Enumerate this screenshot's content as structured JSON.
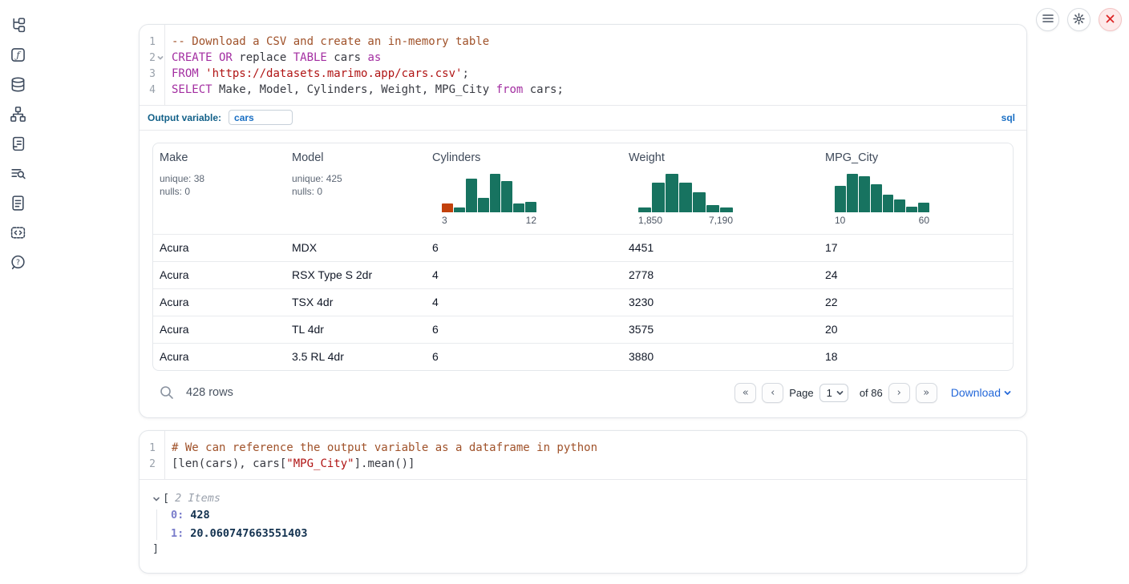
{
  "colors": {
    "hist_green": "#177360",
    "hist_accent": "#c2410c",
    "link_blue": "#2468d9",
    "badge_blue": "#1a6fc4",
    "label_teal": "#136189"
  },
  "sidebar": {
    "items": [
      "file-explorer",
      "helper-functions",
      "data-sources",
      "dependency-graph",
      "logs",
      "table-of-contents",
      "documentation",
      "snippets",
      "help"
    ]
  },
  "topbar": {
    "buttons": [
      "menu",
      "settings",
      "shutdown"
    ]
  },
  "sql_cell": {
    "language_badge": "sql",
    "output_variable": {
      "label": "Output variable:",
      "value": "cars"
    },
    "lines": [
      {
        "num": "1",
        "tokens": [
          {
            "type": "comment",
            "text": "-- Download a CSV and create an in-memory table"
          }
        ]
      },
      {
        "num": "2",
        "tokens": [
          {
            "type": "keyword",
            "text": "CREATE OR"
          },
          {
            "type": "plain",
            "text": " replace "
          },
          {
            "type": "keyword",
            "text": "TABLE"
          },
          {
            "type": "plain",
            "text": " cars "
          },
          {
            "type": "keyword",
            "text": "as"
          }
        ]
      },
      {
        "num": "3",
        "tokens": [
          {
            "type": "keyword",
            "text": "FROM"
          },
          {
            "type": "plain",
            "text": " "
          },
          {
            "type": "string",
            "text": "'https://datasets.marimo.app/cars.csv'"
          },
          {
            "type": "plain",
            "text": ";"
          }
        ]
      },
      {
        "num": "4",
        "tokens": [
          {
            "type": "keyword",
            "text": "SELECT"
          },
          {
            "type": "plain",
            "text": " Make, Model, Cylinders, Weight, MPG_City "
          },
          {
            "type": "keyword",
            "text": "from"
          },
          {
            "type": "plain",
            "text": " cars;"
          }
        ]
      }
    ]
  },
  "table": {
    "columns": [
      {
        "name": "Make",
        "unique": "unique: 38",
        "nulls": "nulls: 0"
      },
      {
        "name": "Model",
        "unique": "unique: 425",
        "nulls": "nulls: 0"
      },
      {
        "name": "Cylinders",
        "min": "3",
        "max": "12",
        "bars": [
          0.22,
          0.12,
          0.88,
          0.38,
          1,
          0.82,
          0.22,
          0.28
        ]
      },
      {
        "name": "Weight",
        "min": "1,850",
        "max": "7,190",
        "bars": [
          0.12,
          0.78,
          1,
          0.78,
          0.52,
          0.18,
          0.12
        ]
      },
      {
        "name": "MPG_City",
        "min": "10",
        "max": "60",
        "bars": [
          0.68,
          1,
          0.93,
          0.72,
          0.45,
          0.33,
          0.15,
          0.25
        ]
      }
    ],
    "rows": [
      [
        "Acura",
        "MDX",
        "6",
        "4451",
        "17"
      ],
      [
        "Acura",
        "RSX Type S 2dr",
        "4",
        "2778",
        "24"
      ],
      [
        "Acura",
        "TSX 4dr",
        "4",
        "3230",
        "22"
      ],
      [
        "Acura",
        "TL 4dr",
        "6",
        "3575",
        "20"
      ],
      [
        "Acura",
        "3.5 RL 4dr",
        "6",
        "3880",
        "18"
      ]
    ],
    "footer": {
      "row_count": "428 rows",
      "first_glyph": "«",
      "prev_glyph": "‹",
      "page_label": "Page",
      "page_value": "1",
      "total_pages_label": "of 86",
      "next_glyph": "›",
      "last_glyph": "»",
      "download_label": "Download"
    }
  },
  "python_cell": {
    "lines": [
      {
        "num": "1",
        "tokens": [
          {
            "type": "comment",
            "text": "# We can reference the output variable as a dataframe in python"
          }
        ]
      },
      {
        "num": "2",
        "tokens": [
          {
            "type": "plain",
            "text": "[len(cars), cars["
          },
          {
            "type": "string",
            "text": "\"MPG_City\""
          },
          {
            "type": "plain",
            "text": "].mean()]"
          }
        ]
      }
    ],
    "output": {
      "open_bracket": "[",
      "items_label": "2 Items",
      "entries": [
        {
          "key": "0:",
          "value": "428"
        },
        {
          "key": "1:",
          "value": "20.060747663551403"
        }
      ],
      "close_bracket": "]"
    }
  }
}
